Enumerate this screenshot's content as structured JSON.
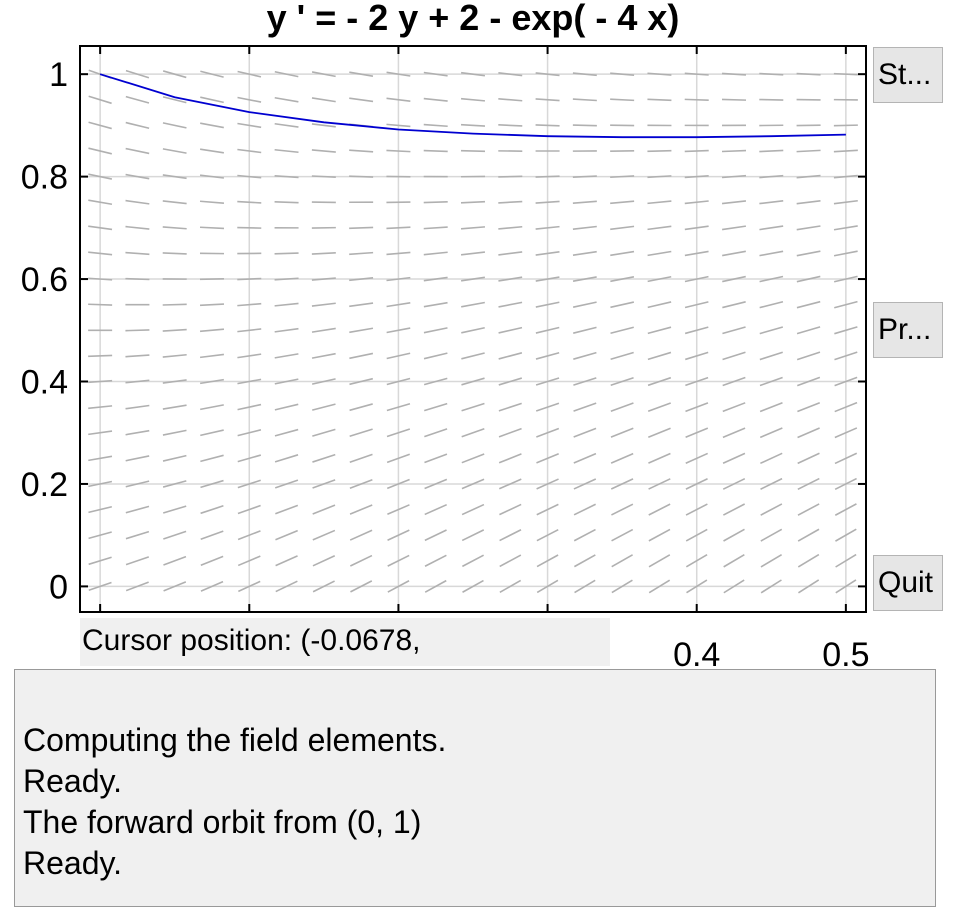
{
  "window": {
    "title": "y ' = - 2 y + 2 - exp( - 4 x)"
  },
  "buttons": {
    "start_label": "St...",
    "print_label": "Pr...",
    "quit_label": "Quit"
  },
  "status": {
    "cursor_position": "Cursor position:  (-0.0678,"
  },
  "messages": [
    "Computing the field elements.",
    "Ready.",
    "The forward orbit from (0, 1)",
    "Ready."
  ],
  "colors": {
    "solution": "#0000d0",
    "field": "#b0b0b0",
    "grid": "#d8d8d8"
  },
  "chart_data": {
    "type": "line",
    "title": "y ' = - 2 y + 2 - exp( - 4 x)",
    "xlim": [
      -0.0135,
      0.5135
    ],
    "ylim": [
      -0.05,
      1.055
    ],
    "xticks": [
      0,
      0.1,
      0.2,
      0.3,
      0.4,
      0.5
    ],
    "xtick_labels_visible": [
      "0.4",
      "0.5"
    ],
    "yticks": [
      0,
      0.2,
      0.4,
      0.6,
      0.8,
      1
    ],
    "ytick_labels": [
      "0",
      "0.2",
      "0.4",
      "0.6",
      "0.8",
      "1"
    ],
    "grid": true,
    "series": [
      {
        "x": [
          0,
          0.05,
          0.1,
          0.15,
          0.2,
          0.25,
          0.3,
          0.35,
          0.4,
          0.45,
          0.5
        ],
        "y": [
          1.0,
          0.955,
          0.926,
          0.906,
          0.892,
          0.884,
          0.879,
          0.877,
          0.877,
          0.879,
          0.882
        ]
      }
    ],
    "slope_field": {
      "equation": "y' = -2y + 2 - exp(-4x)",
      "x_start": 0,
      "x_end": 0.5,
      "x_step": 0.025,
      "y_start": 0,
      "y_end": 1,
      "y_step": 0.05
    }
  }
}
